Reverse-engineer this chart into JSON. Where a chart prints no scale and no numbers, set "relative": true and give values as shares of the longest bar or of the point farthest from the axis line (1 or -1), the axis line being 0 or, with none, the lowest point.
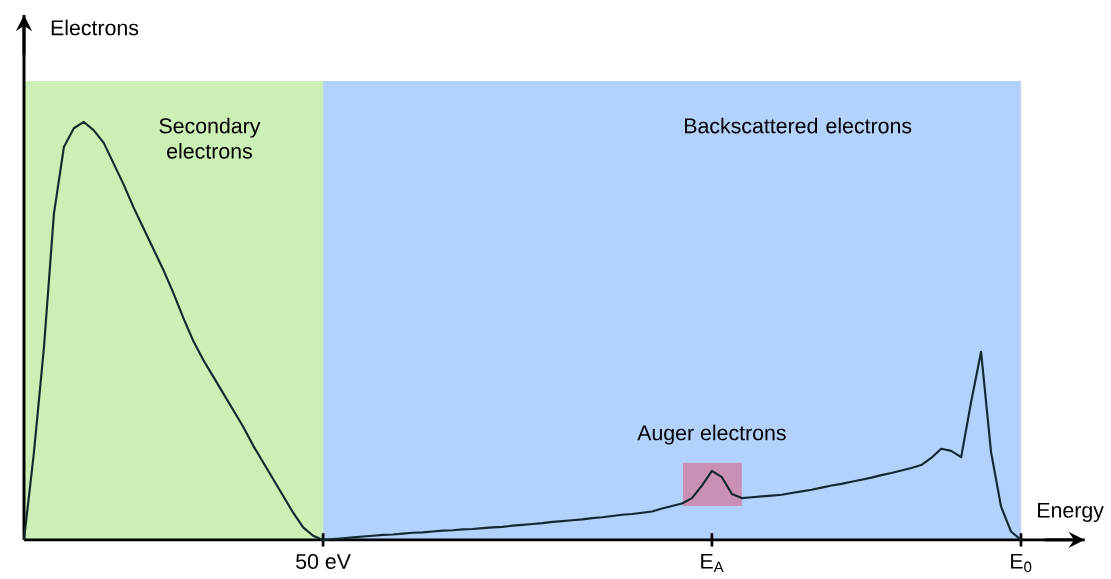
{
  "chart_data": {
    "type": "line",
    "relative": true,
    "xlabel": "Energy",
    "ylabel": "Electrons",
    "categories": [
      null,
      null,
      null,
      null,
      null,
      null,
      null,
      null,
      null,
      null,
      null,
      null,
      null,
      null,
      null,
      null,
      null,
      null,
      null,
      null,
      null,
      null,
      null,
      null,
      null,
      null,
      null,
      null,
      null,
      null,
      "50 eV",
      null,
      null,
      null,
      null,
      null,
      null,
      null,
      null,
      null,
      null,
      null,
      null,
      null,
      null,
      null,
      null,
      null,
      null,
      null,
      null,
      null,
      null,
      null,
      null,
      null,
      null,
      null,
      null,
      null,
      null,
      null,
      null,
      null,
      null,
      null,
      null,
      null,
      null,
      "E$_{A}$",
      null,
      null,
      null,
      null,
      null,
      null,
      null,
      null,
      null,
      null,
      null,
      null,
      null,
      null,
      null,
      null,
      null,
      null,
      null,
      null,
      null,
      null,
      null,
      null,
      null,
      null,
      null,
      null,
      null,
      null,
      "E$_{0}$"
    ],
    "annotations": [
      "Secondary electrons",
      "Backscattered electrons",
      "Auger electrons"
    ],
    "series": [
      {
        "color": "#112a2e",
        "values": [
          0,
          0.21,
          0.46,
          0.78,
          0.94,
          0.985,
          1,
          0.98,
          0.95,
          0.9,
          0.85,
          0.795,
          0.745,
          0.695,
          0.645,
          0.59,
          0.53,
          0.475,
          0.43,
          0.39,
          0.35,
          0.31,
          0.27,
          0.225,
          0.185,
          0.145,
          0.105,
          0.065,
          0.03,
          0.01,
          0,
          0.002,
          0.004,
          0.006,
          0.008,
          0.01,
          0.012,
          0.013,
          0.015,
          0.017,
          0.018,
          0.02,
          0.022,
          0.023,
          0.025,
          0.026,
          0.028,
          0.03,
          0.031,
          0.034,
          0.036,
          0.038,
          0.04,
          0.043,
          0.045,
          0.047,
          0.049,
          0.052,
          0.054,
          0.057,
          0.06,
          0.062,
          0.065,
          0.068,
          0.075,
          0.081,
          0.087,
          0.1,
          0.13,
          0.165,
          0.15,
          0.11,
          0.1,
          0.102,
          0.104,
          0.106,
          0.108,
          0.112,
          0.116,
          0.12,
          0.125,
          0.13,
          0.134,
          0.139,
          0.144,
          0.149,
          0.155,
          0.16,
          0.166,
          0.172,
          0.179,
          0.196,
          0.218,
          0.213,
          0.198,
          0.33,
          0.45,
          0.21,
          0.08,
          0.02,
          0
        ]
      }
    ]
  }
}
